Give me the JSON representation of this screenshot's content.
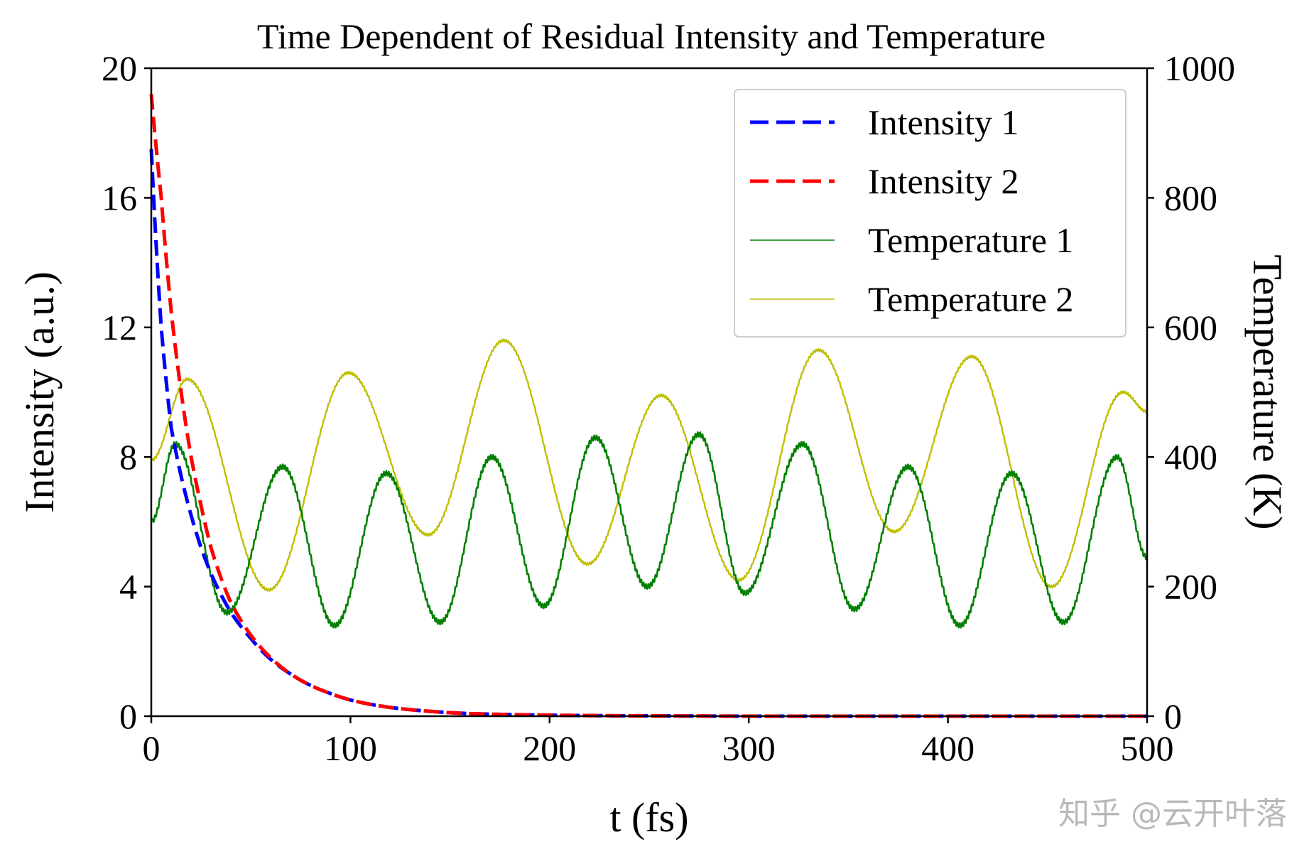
{
  "watermark": "知乎 @云开叶落",
  "chart_data": {
    "type": "line",
    "title": "Time Dependent of Residual Intensity and Temperature",
    "xlabel": "t (fs)",
    "ylabel": "Intensity (a.u.)",
    "y2label": "Temperature (K)",
    "xlim": [
      0,
      500
    ],
    "ylim": [
      0,
      20
    ],
    "y2lim": [
      0,
      1000
    ],
    "xticks": [
      0,
      100,
      200,
      300,
      400,
      500
    ],
    "yticks": [
      0,
      4,
      8,
      12,
      16,
      20
    ],
    "y2ticks": [
      0,
      200,
      400,
      600,
      800,
      1000
    ],
    "legend_position": "top-right",
    "grid": false,
    "series": [
      {
        "name": "Intensity 1",
        "axis": "left",
        "style": "dashed",
        "color": "#0000ff",
        "x": [
          0,
          5,
          10,
          15,
          20,
          25,
          30,
          40,
          50,
          60,
          70,
          80,
          90,
          100,
          120,
          140,
          160,
          180,
          200,
          250,
          300,
          350,
          400,
          450,
          500
        ],
        "y": [
          17.5,
          12.0,
          8.9,
          7.4,
          6.2,
          5.2,
          4.4,
          3.2,
          2.4,
          1.75,
          1.3,
          0.95,
          0.7,
          0.5,
          0.27,
          0.15,
          0.08,
          0.05,
          0.03,
          0.01,
          0.0,
          0.0,
          0.0,
          0.0,
          0.0
        ]
      },
      {
        "name": "Intensity 2",
        "axis": "left",
        "style": "dashed",
        "color": "#ff0000",
        "x": [
          0,
          5,
          10,
          15,
          20,
          25,
          30,
          40,
          50,
          60,
          70,
          80,
          90,
          100,
          120,
          140,
          160,
          180,
          200,
          250,
          300,
          350,
          400,
          450,
          500
        ],
        "y": [
          19.2,
          16.0,
          12.5,
          10.0,
          8.0,
          6.5,
          5.2,
          3.5,
          2.5,
          1.8,
          1.3,
          0.95,
          0.7,
          0.5,
          0.27,
          0.15,
          0.08,
          0.05,
          0.03,
          0.01,
          0.0,
          0.0,
          0.0,
          0.0,
          0.0
        ]
      },
      {
        "name": "Temperature 1",
        "axis": "right",
        "style": "solid",
        "color": "#008000",
        "x": [
          0,
          12,
          38,
          66,
          92,
          118,
          145,
          171,
          197,
          223,
          249,
          275,
          298,
          327,
          353,
          380,
          406,
          432,
          458,
          485,
          500
        ],
        "y": [
          300,
          420,
          160,
          385,
          140,
          375,
          145,
          400,
          170,
          430,
          200,
          435,
          190,
          420,
          165,
          385,
          140,
          375,
          145,
          400,
          245
        ]
      },
      {
        "name": "Temperature 2",
        "axis": "right",
        "style": "solid",
        "color": "#bfbf00",
        "x": [
          0,
          18,
          59,
          99,
          139,
          177,
          219,
          256,
          295,
          335,
          373,
          412,
          452,
          488,
          500
        ],
        "y": [
          395,
          520,
          195,
          530,
          280,
          580,
          235,
          495,
          210,
          565,
          285,
          555,
          200,
          500,
          470
        ]
      }
    ]
  }
}
